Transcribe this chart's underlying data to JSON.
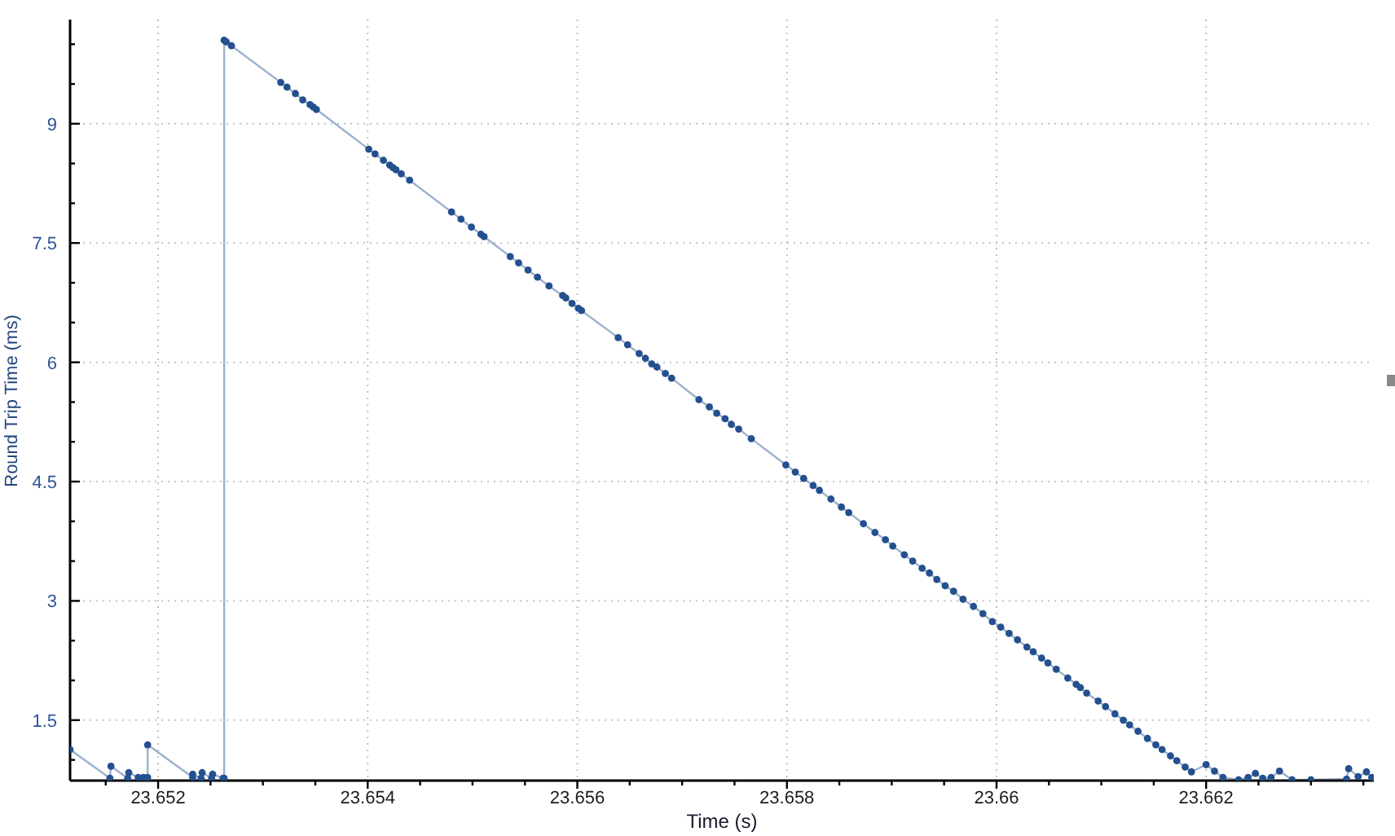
{
  "chart_data": {
    "type": "line",
    "xlabel": "Time (s)",
    "ylabel": "Round Trip Time (ms)",
    "x": [
      23.65116,
      23.65154,
      23.65155,
      23.65171,
      23.65172,
      23.65181,
      23.65186,
      23.6519,
      23.6519,
      23.65233,
      23.65233,
      23.65241,
      23.65242,
      23.65251,
      23.65252,
      23.65262,
      23.65263,
      23.65263,
      23.65265,
      23.6527,
      23.65317,
      23.65323,
      23.65331,
      23.65338,
      23.65345,
      23.65348,
      23.65351,
      23.65401,
      23.65407,
      23.65415,
      23.65421,
      23.65424,
      23.65427,
      23.65432,
      23.6544,
      23.6548,
      23.65489,
      23.65499,
      23.65508,
      23.65511,
      23.65536,
      23.65544,
      23.65553,
      23.65562,
      23.65573,
      23.65586,
      23.65589,
      23.65595,
      23.65601,
      23.65604,
      23.65639,
      23.65648,
      23.65659,
      23.65665,
      23.65671,
      23.65676,
      23.65684,
      23.6569,
      23.65716,
      23.65726,
      23.65733,
      23.65741,
      23.65747,
      23.65754,
      23.65766,
      23.65799,
      23.65808,
      23.65816,
      23.65825,
      23.65831,
      23.65842,
      23.65852,
      23.65859,
      23.65873,
      23.65884,
      23.65894,
      23.65901,
      23.65912,
      23.6592,
      23.65929,
      23.65936,
      23.65943,
      23.65951,
      23.65959,
      23.65968,
      23.65978,
      23.65987,
      23.65996,
      23.66004,
      23.66012,
      23.6602,
      23.66029,
      23.66035,
      23.66043,
      23.66049,
      23.66057,
      23.66068,
      23.66076,
      23.6608,
      23.66086,
      23.66097,
      23.66104,
      23.66113,
      23.66121,
      23.66127,
      23.66135,
      23.66144,
      23.66152,
      23.66158,
      23.66166,
      23.66172,
      23.6618,
      23.66186,
      23.662,
      23.66208,
      23.66216,
      23.66231,
      23.6624,
      23.66247,
      23.66254,
      23.66262,
      23.6627,
      23.66282,
      23.663,
      23.66334,
      23.66336,
      23.66345,
      23.66353,
      23.66358
    ],
    "values": [
      1.13,
      0.77,
      0.92,
      0.77,
      0.84,
      0.78,
      0.78,
      0.78,
      1.19,
      0.78,
      0.82,
      0.77,
      0.84,
      0.77,
      0.82,
      0.77,
      0.77,
      10.05,
      10.03,
      9.98,
      9.52,
      9.46,
      9.38,
      9.3,
      9.24,
      9.21,
      9.18,
      8.68,
      8.62,
      8.54,
      8.48,
      8.45,
      8.42,
      8.37,
      8.29,
      7.89,
      7.8,
      7.7,
      7.61,
      7.58,
      7.33,
      7.25,
      7.16,
      7.07,
      6.96,
      6.84,
      6.81,
      6.74,
      6.68,
      6.65,
      6.31,
      6.22,
      6.11,
      6.05,
      5.98,
      5.94,
      5.86,
      5.8,
      5.53,
      5.44,
      5.36,
      5.29,
      5.22,
      5.16,
      5.04,
      4.71,
      4.62,
      4.54,
      4.45,
      4.39,
      4.28,
      4.18,
      4.11,
      3.97,
      3.86,
      3.77,
      3.69,
      3.58,
      3.5,
      3.41,
      3.35,
      3.27,
      3.19,
      3.12,
      3.02,
      2.93,
      2.84,
      2.74,
      2.67,
      2.59,
      2.51,
      2.42,
      2.36,
      2.28,
      2.22,
      2.14,
      2.03,
      1.95,
      1.91,
      1.84,
      1.74,
      1.67,
      1.58,
      1.5,
      1.44,
      1.36,
      1.27,
      1.19,
      1.13,
      1.05,
      0.99,
      0.91,
      0.85,
      0.94,
      0.86,
      0.78,
      0.75,
      0.78,
      0.83,
      0.77,
      0.78,
      0.86,
      0.75,
      0.75,
      0.76,
      0.89,
      0.79,
      0.85,
      0.78
    ],
    "color": "#24508f",
    "marker": "circle",
    "line_style": "solid",
    "grid": true,
    "xlim": [
      23.65116,
      23.6636
    ],
    "xticks": [
      {
        "value": 23.6515,
        "label": null
      },
      23.652,
      {
        "value": 23.6525,
        "label": null
      },
      {
        "value": 23.653,
        "label": null
      },
      {
        "value": 23.6535,
        "label": null
      },
      23.654,
      {
        "value": 23.6545,
        "label": null
      },
      {
        "value": 23.655,
        "label": null
      },
      {
        "value": 23.6555,
        "label": null
      },
      23.656,
      {
        "value": 23.6565,
        "label": null
      },
      {
        "value": 23.657,
        "label": null
      },
      {
        "value": 23.6575,
        "label": null
      },
      23.658,
      {
        "value": 23.6585,
        "label": null
      },
      {
        "value": 23.659,
        "label": null
      },
      {
        "value": 23.6595,
        "label": null
      },
      23.66,
      {
        "value": 23.6605,
        "label": null
      },
      {
        "value": 23.661,
        "label": null
      },
      {
        "value": 23.6615,
        "label": null
      },
      23.662,
      {
        "value": 23.6625,
        "label": null
      },
      {
        "value": 23.663,
        "label": null
      },
      {
        "value": 23.6635,
        "label": null
      }
    ],
    "ylim": [
      0.74,
      10.31
    ],
    "yticks": [
      {
        "value": 1,
        "label": null
      },
      1.5,
      {
        "value": 2,
        "label": null
      },
      {
        "value": 2.5,
        "label": null
      },
      3,
      {
        "value": 3.5,
        "label": null
      },
      {
        "value": 4,
        "label": null
      },
      4.5,
      {
        "value": 5,
        "label": null
      },
      {
        "value": 5.5,
        "label": null
      },
      6,
      {
        "value": 6.5,
        "label": null
      },
      {
        "value": 7,
        "label": null
      },
      7.5,
      {
        "value": 8,
        "label": null
      },
      {
        "value": 8.5,
        "label": null
      },
      9,
      {
        "value": 9.5,
        "label": null
      },
      {
        "value": 10,
        "label": null
      }
    ]
  }
}
